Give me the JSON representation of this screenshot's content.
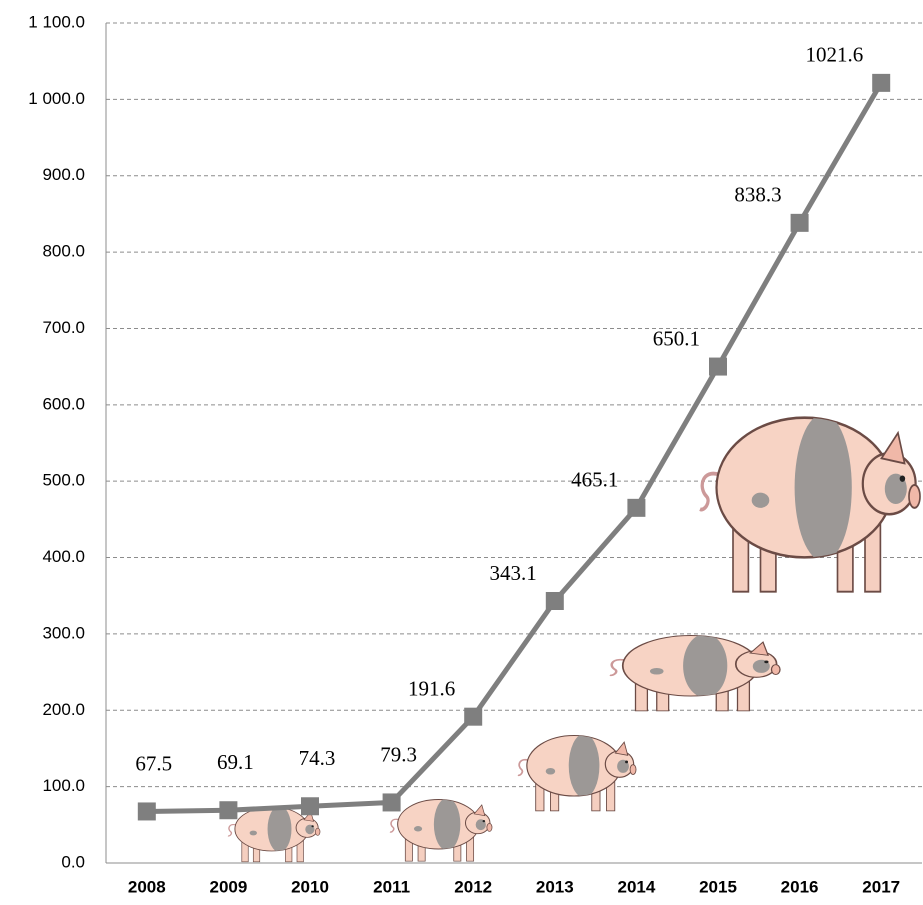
{
  "chart_data": {
    "type": "line",
    "categories": [
      "2008",
      "2009",
      "2010",
      "2011",
      "2012",
      "2013",
      "2014",
      "2015",
      "2016",
      "2017"
    ],
    "values": [
      67.5,
      69.1,
      74.3,
      79.3,
      191.6,
      343.1,
      465.1,
      650.1,
      838.3,
      1021.6
    ],
    "color": "#7f7f7f",
    "ylim": [
      0,
      1100
    ],
    "yticks": [
      {
        "value": 0,
        "label": "0.0"
      },
      {
        "value": 100,
        "label": "100.0"
      },
      {
        "value": 200,
        "label": "200.0"
      },
      {
        "value": 300,
        "label": "300.0"
      },
      {
        "value": 400,
        "label": "400.0"
      },
      {
        "value": 500,
        "label": "500.0"
      },
      {
        "value": 600,
        "label": "600.0"
      },
      {
        "value": 700,
        "label": "700.0"
      },
      {
        "value": 800,
        "label": "800.0"
      },
      {
        "value": 900,
        "label": "900.0"
      },
      {
        "value": 1000,
        "label": "1 000.0"
      },
      {
        "value": 1100,
        "label": "1 100.0"
      }
    ],
    "grid": true
  }
}
